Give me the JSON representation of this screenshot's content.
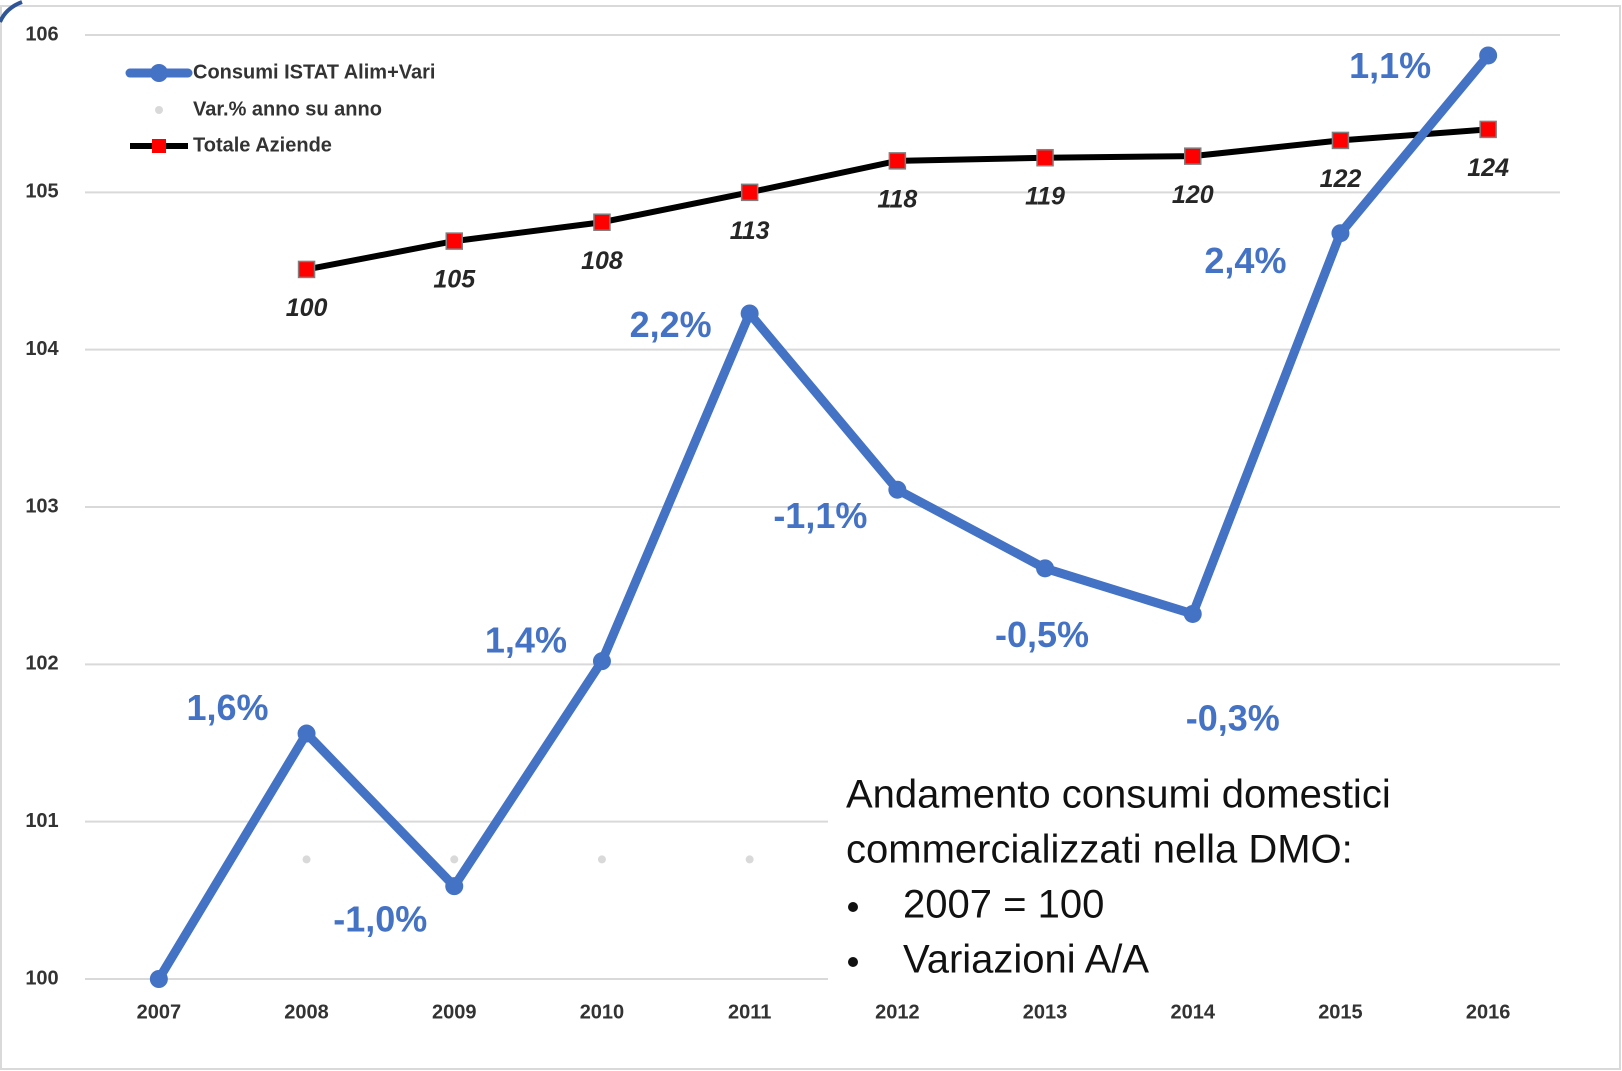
{
  "chart_data": {
    "type": "line",
    "categories": [
      "2007",
      "2008",
      "2009",
      "2010",
      "2011",
      "2012",
      "2013",
      "2014",
      "2015",
      "2016"
    ],
    "ylim": [
      100,
      106
    ],
    "yticks": [
      100,
      101,
      102,
      103,
      104,
      105,
      106
    ],
    "grid": true,
    "legend": "top-left",
    "series": [
      {
        "name": "Consumi ISTAT Alim+Vari",
        "color": "#4472c4",
        "values": [
          100,
          101.56,
          100.59,
          102.02,
          104.23,
          103.11,
          102.61,
          102.32,
          104.74,
          105.87
        ],
        "point_labels": [
          null,
          "1,6%",
          "-1,0%",
          "1,4%",
          "2,2%",
          "-1,1%",
          "-0,5%",
          "-0,3%",
          "2,4%",
          "1,1%"
        ]
      },
      {
        "name": "Var.% anno su anno",
        "color": "#d9d9d9",
        "values": [
          null,
          100.76,
          100.76,
          100.76,
          100.76,
          100.76,
          100.76,
          100.76,
          100.76,
          100.76
        ]
      },
      {
        "name": "Totale Aziende",
        "color": "#000000",
        "marker_color": "#ff0000",
        "values": [
          null,
          104.51,
          104.69,
          104.81,
          105.0,
          105.2,
          105.22,
          105.23,
          105.33,
          105.4
        ],
        "point_labels": [
          null,
          "100",
          "105",
          "108",
          "113",
          "118",
          "119",
          "120",
          "122",
          "124"
        ]
      }
    ],
    "note": {
      "lines": [
        "Andamento consumi domestici",
        "commercializzati nella DMO:"
      ],
      "bullets": [
        "2007 = 100",
        "Variazioni A/A"
      ]
    }
  }
}
